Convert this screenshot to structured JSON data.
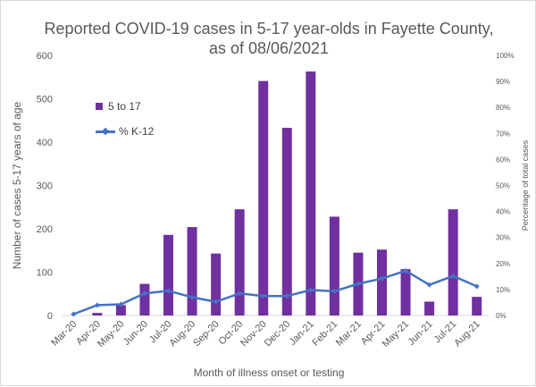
{
  "chart_data": {
    "type": "bar",
    "title_line1": "Reported COVID-19 cases in 5-17 year-olds in Fayette County,",
    "title_line2": "as of 08/06/2021",
    "xlabel": "Month of illness onset or testing",
    "ylabel": "Number of cases 5-17 years of age",
    "y2label": "Percentage of total cases",
    "ylim": [
      0,
      600
    ],
    "yticks": [
      0,
      100,
      200,
      300,
      400,
      500,
      600
    ],
    "y2lim": [
      0,
      100
    ],
    "y2ticks": [
      "0%",
      "10%",
      "20%",
      "30%",
      "40%",
      "50%",
      "60%",
      "70%",
      "80%",
      "90%",
      "100%"
    ],
    "categories": [
      "Mar-20",
      "Apr-20",
      "May-20",
      "Jun-20",
      "Jul-20",
      "Aug-20",
      "Sep-20",
      "Oct-20",
      "Nov-20",
      "Dec-20",
      "Jan-21",
      "Feb-21",
      "Mar-21",
      "Apr-21",
      "May-21",
      "Jun-21",
      "Jul-21",
      "Aug-21"
    ],
    "series": [
      {
        "name": "5 to 17",
        "type": "bar",
        "axis": "left",
        "color": "#7030a0",
        "values": [
          0,
          6,
          24,
          73,
          186,
          204,
          143,
          245,
          541,
          433,
          563,
          228,
          145,
          152,
          107,
          32,
          245,
          43
        ]
      },
      {
        "name": "% K-12",
        "type": "line",
        "axis": "right",
        "color": "#4472c4",
        "values": [
          0.5,
          4.0,
          4.3,
          8.5,
          9.5,
          7.0,
          5.3,
          8.5,
          7.5,
          7.5,
          9.8,
          9.3,
          12.2,
          14.2,
          17.2,
          11.8,
          15.2,
          11.2
        ]
      }
    ],
    "grid": false,
    "legend_position": "upper-left"
  }
}
